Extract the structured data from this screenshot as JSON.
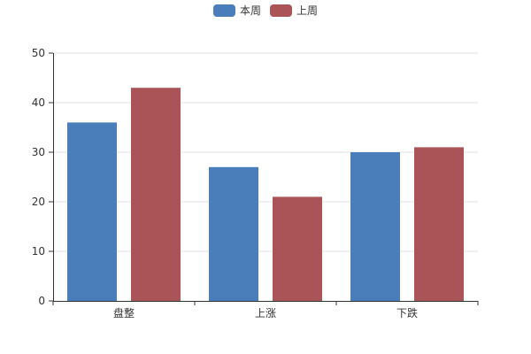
{
  "chart_data": {
    "type": "bar",
    "categories": [
      "盘整",
      "上涨",
      "下跌"
    ],
    "series": [
      {
        "name": "本周",
        "values": [
          36,
          27,
          30
        ],
        "color": "#4a7ebb"
      },
      {
        "name": "上周",
        "values": [
          43,
          21,
          31
        ],
        "color": "#ab5457"
      }
    ],
    "ylim": [
      0,
      50
    ],
    "yticks": [
      0,
      10,
      20,
      30,
      40,
      50
    ],
    "grid": true,
    "legend_position": "top-center",
    "title": "",
    "xlabel": "",
    "ylabel": ""
  }
}
